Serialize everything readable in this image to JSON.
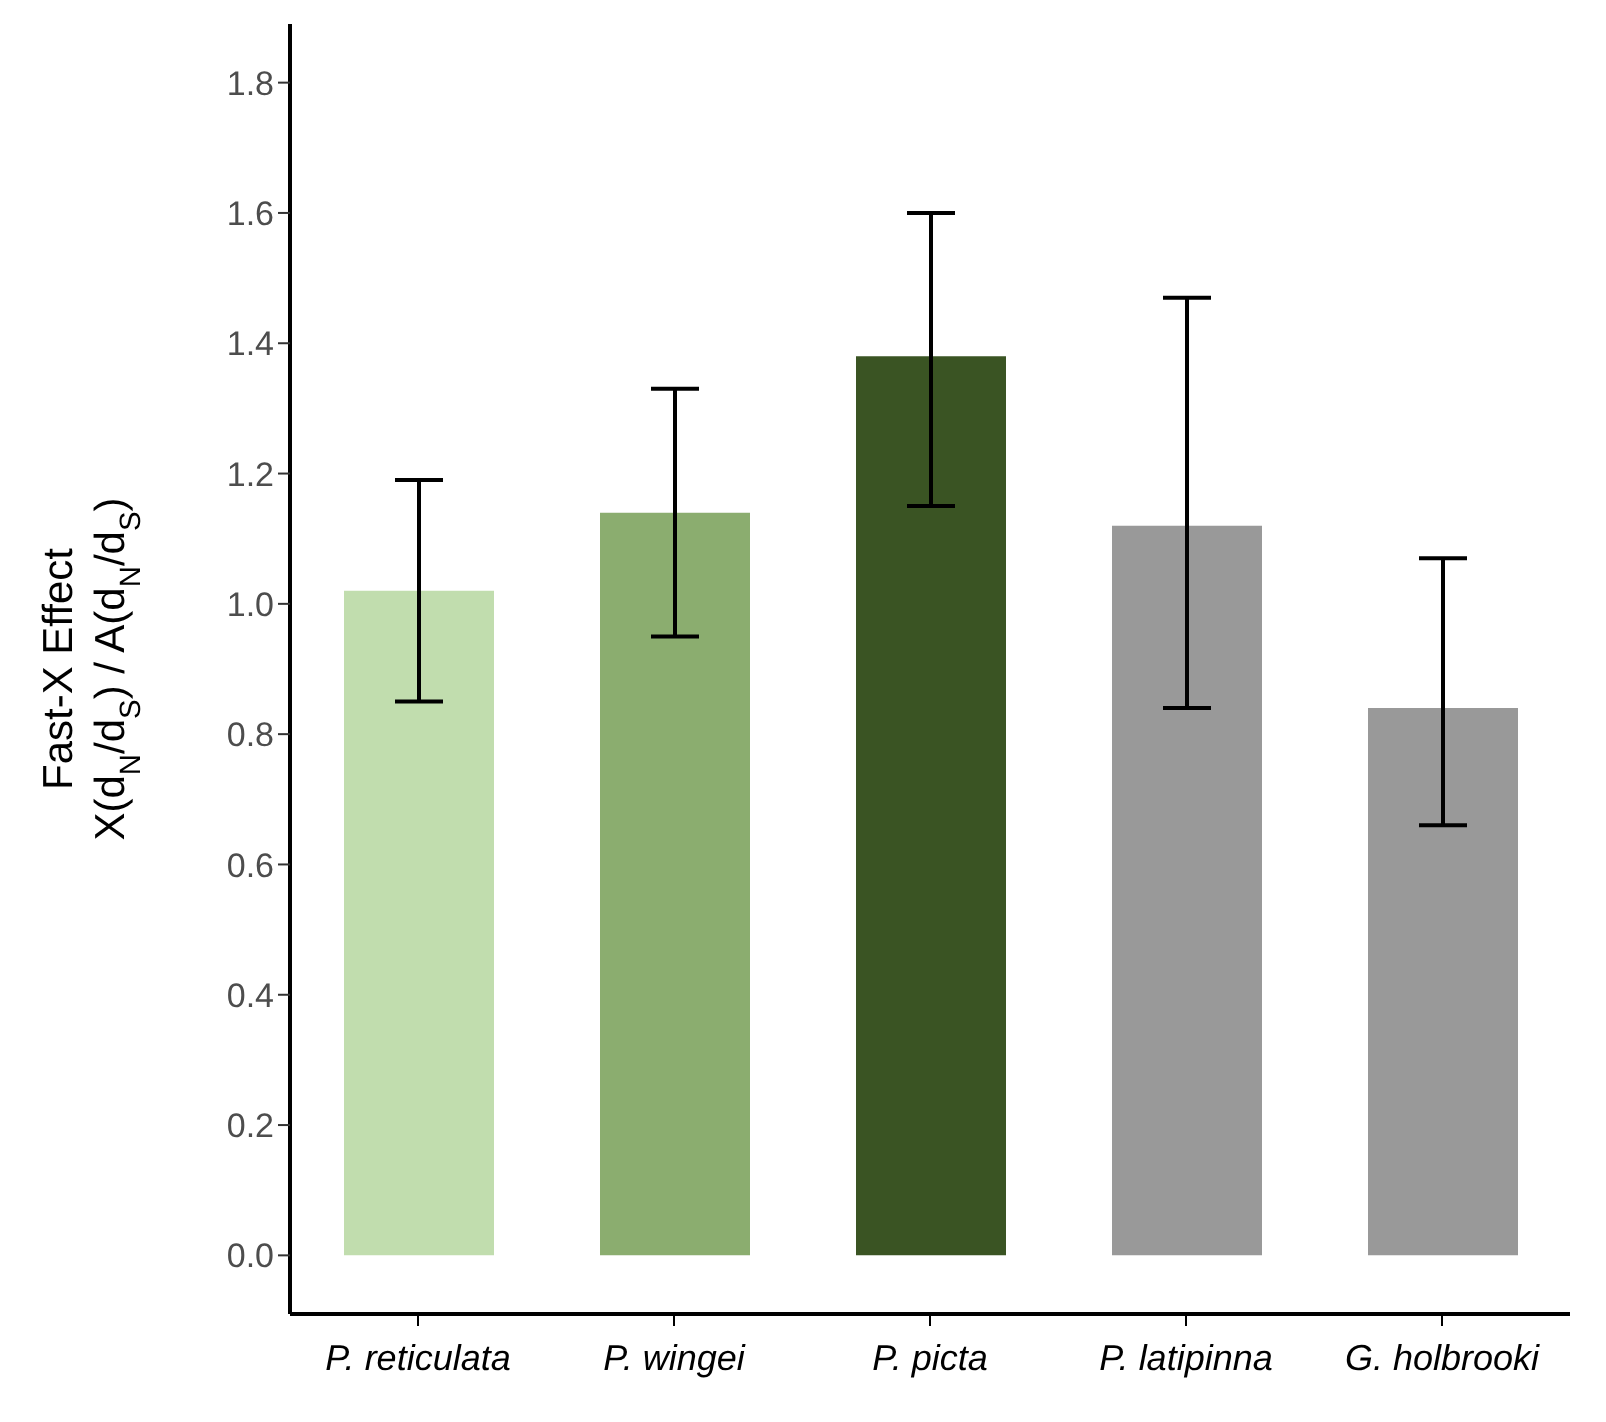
{
  "chart_data": {
    "type": "bar",
    "ylabel": "Fast-X Effect\nX(d$_{N}$/d$_{S}$) / A(d$_{N}$/d$_{S}$)",
    "categories": [
      "P. reticulata",
      "P. wingei",
      "P. picta",
      "P. latipinna",
      "G. holbrooki"
    ],
    "values": [
      1.02,
      1.14,
      1.38,
      1.12,
      0.84
    ],
    "colors": [
      "#c1ddae",
      "#8bad6f",
      "#3a5423",
      "#999999",
      "#999999"
    ],
    "errors": [
      [
        0.85,
        1.19
      ],
      [
        0.95,
        1.33
      ],
      [
        1.15,
        1.6
      ],
      [
        0.84,
        1.47
      ],
      [
        0.66,
        1.07
      ]
    ],
    "ylim": [
      -0.09,
      1.89
    ],
    "yticks": [
      {
        "value": 0,
        "label": "0.0"
      },
      0.2,
      0.4,
      0.6,
      0.8,
      {
        "value": 1,
        "label": "1.0"
      },
      1.2,
      1.4,
      1.6,
      1.8
    ],
    "grid": false,
    "legend": false
  }
}
